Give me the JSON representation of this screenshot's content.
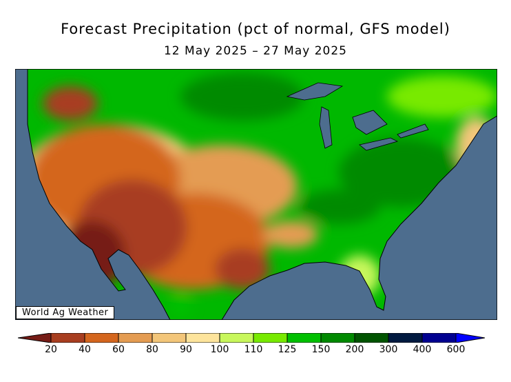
{
  "title": "Forecast Precipitation (pct of normal, GFS model)",
  "subtitle": "12 May 2025 – 27 May 2025",
  "watermark": "World Ag Weather",
  "colors": {
    "ocean": "#4d6d8e",
    "border": "#000000"
  },
  "legend": {
    "labels": [
      "20",
      "40",
      "60",
      "80",
      "90",
      "100",
      "110",
      "125",
      "150",
      "200",
      "300",
      "400",
      "600"
    ],
    "colors": [
      "#761c16",
      "#a83e20",
      "#d4661e",
      "#e49c52",
      "#f3c67a",
      "#fde49c",
      "#c8f75c",
      "#78ea00",
      "#00c000",
      "#008a00",
      "#005400",
      "#001a40",
      "#000090",
      "#0000ff"
    ]
  }
}
